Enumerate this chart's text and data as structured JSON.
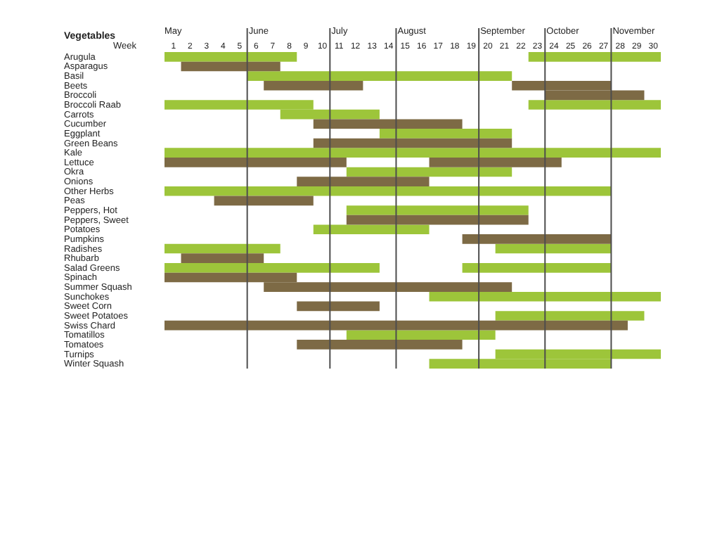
{
  "chart_data": {
    "type": "bar",
    "orientation": "horizontal",
    "ylabel": "Vegetables",
    "xlabel": "Week",
    "categories": [
      "Arugula",
      "Asparagus",
      "Basil",
      "Beets",
      "Broccoli",
      "Broccoli Raab",
      "Carrots",
      "Cucumber",
      "Eggplant",
      "Green Beans",
      "Kale",
      "Lettuce",
      "Okra",
      "Onions",
      "Other Herbs",
      "Peas",
      "Peppers, Hot",
      "Peppers, Sweet",
      "Potatoes",
      "Pumpkins",
      "Radishes",
      "Rhubarb",
      "Salad Greens",
      "Spinach",
      "Summer Squash",
      "Sunchokes",
      "Sweet Corn",
      "Sweet Potatoes",
      "Swiss Chard",
      "Tomatillos",
      "Tomatoes",
      "Turnips",
      "Winter Squash"
    ],
    "series": [
      {
        "color": "#9dc53a",
        "base": [
          0.5,
          null,
          5.5,
          null,
          null,
          0.5,
          7.5,
          null,
          13.5,
          null,
          0.5,
          null,
          11.5,
          null,
          0.5,
          null,
          11.5,
          null,
          9.5,
          null,
          0.5,
          null,
          0.5,
          null,
          null,
          16.5,
          null,
          20.5,
          null,
          11.5,
          null,
          20.5,
          16.5
        ],
        "values": [
          8,
          null,
          16,
          null,
          null,
          9,
          6,
          null,
          8,
          null,
          30,
          null,
          10,
          null,
          27,
          null,
          11,
          null,
          7,
          null,
          7,
          null,
          13,
          null,
          null,
          14,
          null,
          9,
          null,
          9,
          null,
          10,
          11
        ]
      },
      {
        "color": "#9dc53a",
        "base": [
          22.5,
          null,
          null,
          null,
          null,
          22.5,
          null,
          null,
          null,
          null,
          null,
          null,
          null,
          null,
          null,
          null,
          null,
          null,
          null,
          null,
          20.5,
          null,
          18.5,
          null,
          null,
          null,
          null,
          null,
          null,
          null,
          null,
          null,
          null
        ],
        "values": [
          8,
          null,
          null,
          null,
          null,
          8,
          null,
          null,
          null,
          null,
          null,
          null,
          null,
          null,
          null,
          null,
          null,
          null,
          null,
          null,
          7,
          null,
          9,
          null,
          null,
          null,
          null,
          null,
          null,
          null,
          null,
          null,
          null
        ]
      },
      {
        "color": "#7d6a45",
        "base": [
          null,
          1.5,
          null,
          6.5,
          23.5,
          null,
          null,
          9.5,
          null,
          9.5,
          null,
          0.5,
          null,
          8.5,
          null,
          3.5,
          null,
          11.5,
          null,
          18.5,
          null,
          1.5,
          null,
          0.5,
          6.5,
          null,
          8.5,
          null,
          0.5,
          null,
          8.5,
          null,
          null
        ],
        "values": [
          null,
          6,
          null,
          6,
          6,
          null,
          null,
          9,
          null,
          12,
          null,
          11,
          null,
          8,
          null,
          6,
          null,
          11,
          null,
          9,
          null,
          5,
          null,
          8,
          15,
          null,
          5,
          null,
          28,
          null,
          10,
          null,
          null
        ]
      },
      {
        "color": "#7d6a45",
        "base": [
          null,
          null,
          null,
          21.5,
          null,
          null,
          null,
          null,
          null,
          null,
          null,
          16.5,
          null,
          null,
          null,
          null,
          null,
          null,
          null,
          null,
          null,
          null,
          null,
          null,
          null,
          null,
          null,
          null,
          null,
          null,
          null,
          null,
          null
        ],
        "values": [
          null,
          null,
          null,
          6,
          null,
          null,
          null,
          null,
          null,
          null,
          null,
          8,
          null,
          null,
          null,
          null,
          null,
          null,
          null,
          null,
          null,
          null,
          null,
          null,
          null,
          null,
          null,
          null,
          null,
          null,
          null,
          null,
          null
        ]
      }
    ],
    "xlim": [
      0.5,
      30.5
    ],
    "xticks": [
      1,
      2,
      3,
      4,
      5,
      6,
      7,
      8,
      9,
      10,
      11,
      12,
      13,
      14,
      15,
      16,
      17,
      18,
      19,
      20,
      21,
      22,
      23,
      24,
      25,
      26,
      27,
      28,
      29,
      30
    ],
    "ref_lines": [
      {
        "axis": "x",
        "value": 5.5,
        "label": "June",
        "color": "#4d4d4d"
      },
      {
        "axis": "x",
        "value": 10.5,
        "label": "July",
        "color": "#4d4d4d"
      },
      {
        "axis": "x",
        "value": 14.5,
        "label": "August",
        "color": "#4d4d4d"
      },
      {
        "axis": "x",
        "value": 19.5,
        "label": "September",
        "color": "#4d4d4d"
      },
      {
        "axis": "x",
        "value": 23.5,
        "label": "October",
        "color": "#4d4d4d"
      },
      {
        "axis": "x",
        "value": 27.5,
        "label": "November",
        "color": "#4d4d4d"
      }
    ],
    "annotations": [
      "May"
    ]
  }
}
